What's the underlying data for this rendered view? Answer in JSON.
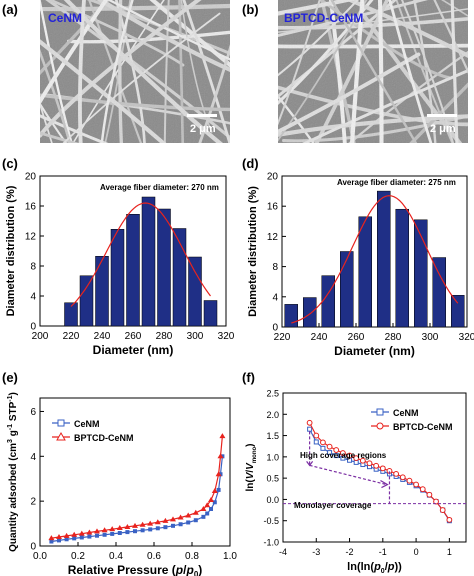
{
  "panels": {
    "a": {
      "letter": "(a)",
      "sample": "CeNM",
      "scale": "2 μm"
    },
    "b": {
      "letter": "(b)",
      "sample": "BPTCD-CeNM",
      "scale": "2 μm"
    },
    "c": {
      "letter": "(c)",
      "annotation": "Average fiber diameter: 270 nm"
    },
    "d": {
      "letter": "(d)",
      "annotation": "Average fiber diameter: 275 nm"
    },
    "e": {
      "letter": "(e)"
    },
    "f": {
      "letter": "(f)",
      "annotation_high": "High coverage regions",
      "annotation_mono": "Monolayer coverage"
    }
  },
  "colors": {
    "bar": "#1f2f86",
    "fit": "#e8231e",
    "cenm": "#3a62c4",
    "bptcd": "#e8231e",
    "arrow": "#7b2fa3",
    "label_blue": "#2323d8"
  },
  "chart_data": [
    {
      "id": "c",
      "type": "bar",
      "xlabel": "Diameter (nm)",
      "ylabel": "Diameter distribution (%)",
      "xlim": [
        200,
        320
      ],
      "ylim": [
        0,
        20
      ],
      "xticks": [
        "200",
        "220",
        "240",
        "260",
        "280",
        "300",
        "320"
      ],
      "yticks": [
        "0",
        "4",
        "8",
        "12",
        "16",
        "20"
      ],
      "x": [
        220,
        230,
        240,
        250,
        260,
        270,
        280,
        290,
        300,
        310
      ],
      "values": [
        3.1,
        6.7,
        9.3,
        12.9,
        14.9,
        17.2,
        15.6,
        13.0,
        9.2,
        3.4
      ],
      "fit": {
        "type": "gaussian",
        "peak_x": 268,
        "peak_y": 16.4,
        "sigma": 25
      }
    },
    {
      "id": "d",
      "type": "bar",
      "xlabel": "Diameter (nm)",
      "ylabel": "Diameter distribution (%)",
      "xlim": [
        220,
        320
      ],
      "ylim": [
        0,
        20
      ],
      "xticks": [
        "220",
        "240",
        "260",
        "280",
        "300",
        "320"
      ],
      "yticks": [
        "0",
        "4",
        "8",
        "12",
        "16",
        "20"
      ],
      "x": [
        225,
        235,
        245,
        255,
        265,
        275,
        285,
        295,
        305,
        315
      ],
      "values": [
        3.0,
        3.9,
        6.8,
        10.0,
        14.6,
        18.0,
        15.6,
        14.2,
        9.2,
        4.2
      ],
      "fit": {
        "type": "gaussian",
        "peak_x": 278,
        "peak_y": 17.4,
        "sigma": 20
      }
    },
    {
      "id": "e",
      "type": "line",
      "xlabel": "Relative Pressure (p/p0)",
      "ylabel": "Quantity adsorbed (cm3 g-1 STP)",
      "xlim": [
        0.0,
        1.0
      ],
      "ylim": [
        0,
        6.6
      ],
      "xticks": [
        "0.0",
        "0.2",
        "0.4",
        "0.6",
        "0.8",
        "1.0"
      ],
      "yticks": [
        "0",
        "2",
        "4",
        "6"
      ],
      "series": [
        {
          "name": "CeNM",
          "x": [
            0.06,
            0.1,
            0.14,
            0.18,
            0.22,
            0.26,
            0.3,
            0.34,
            0.38,
            0.42,
            0.46,
            0.5,
            0.54,
            0.58,
            0.62,
            0.66,
            0.7,
            0.74,
            0.78,
            0.82,
            0.86,
            0.88,
            0.9,
            0.92,
            0.94,
            0.95,
            0.96
          ],
          "y": [
            0.2,
            0.25,
            0.3,
            0.34,
            0.38,
            0.42,
            0.46,
            0.5,
            0.54,
            0.58,
            0.62,
            0.66,
            0.7,
            0.74,
            0.79,
            0.84,
            0.9,
            0.97,
            1.05,
            1.15,
            1.3,
            1.45,
            1.65,
            1.95,
            2.5,
            3.2,
            4.0
          ]
        },
        {
          "name": "BPTCD-CeNM",
          "x": [
            0.06,
            0.1,
            0.14,
            0.18,
            0.22,
            0.26,
            0.3,
            0.34,
            0.38,
            0.42,
            0.46,
            0.5,
            0.54,
            0.58,
            0.62,
            0.66,
            0.7,
            0.74,
            0.78,
            0.82,
            0.86,
            0.88,
            0.9,
            0.92,
            0.94,
            0.95,
            0.96
          ],
          "y": [
            0.35,
            0.4,
            0.45,
            0.5,
            0.55,
            0.6,
            0.65,
            0.7,
            0.75,
            0.8,
            0.85,
            0.9,
            0.95,
            1.0,
            1.06,
            1.12,
            1.19,
            1.27,
            1.36,
            1.48,
            1.65,
            1.82,
            2.05,
            2.45,
            3.2,
            4.0,
            4.9
          ]
        }
      ]
    },
    {
      "id": "f",
      "type": "line",
      "xlabel": "ln(ln(p0/p))",
      "ylabel": "ln(V/Vmono)",
      "xlim": [
        -4,
        1.5
      ],
      "ylim": [
        -1.0,
        2.5
      ],
      "xticks": [
        "-4",
        "-3",
        "-2",
        "-1",
        "0",
        "1"
      ],
      "yticks": [
        "-1.0",
        "-0.5",
        "0.0",
        "0.5",
        "1.0",
        "1.5",
        "2.0",
        "2.5"
      ],
      "series": [
        {
          "name": "CeNM",
          "x": [
            -3.2,
            -3.0,
            -2.8,
            -2.6,
            -2.4,
            -2.2,
            -2.0,
            -1.8,
            -1.6,
            -1.4,
            -1.2,
            -1.0,
            -0.8,
            -0.6,
            -0.4,
            -0.2,
            0.0,
            0.2,
            0.4,
            0.6,
            0.8,
            1.0
          ],
          "y": [
            1.65,
            1.35,
            1.2,
            1.1,
            1.03,
            0.97,
            0.92,
            0.87,
            0.82,
            0.77,
            0.71,
            0.66,
            0.6,
            0.54,
            0.47,
            0.4,
            0.32,
            0.22,
            0.1,
            -0.05,
            -0.25,
            -0.5
          ]
        },
        {
          "name": "BPTCD-CeNM",
          "x": [
            -3.2,
            -3.0,
            -2.8,
            -2.6,
            -2.4,
            -2.2,
            -2.0,
            -1.8,
            -1.6,
            -1.4,
            -1.2,
            -1.0,
            -0.8,
            -0.6,
            -0.4,
            -0.2,
            0.0,
            0.2,
            0.4,
            0.6,
            0.8,
            1.0
          ],
          "y": [
            1.8,
            1.5,
            1.34,
            1.24,
            1.16,
            1.09,
            1.03,
            0.97,
            0.91,
            0.85,
            0.79,
            0.73,
            0.67,
            0.6,
            0.52,
            0.44,
            0.35,
            0.24,
            0.11,
            -0.05,
            -0.25,
            -0.48
          ]
        }
      ]
    }
  ]
}
